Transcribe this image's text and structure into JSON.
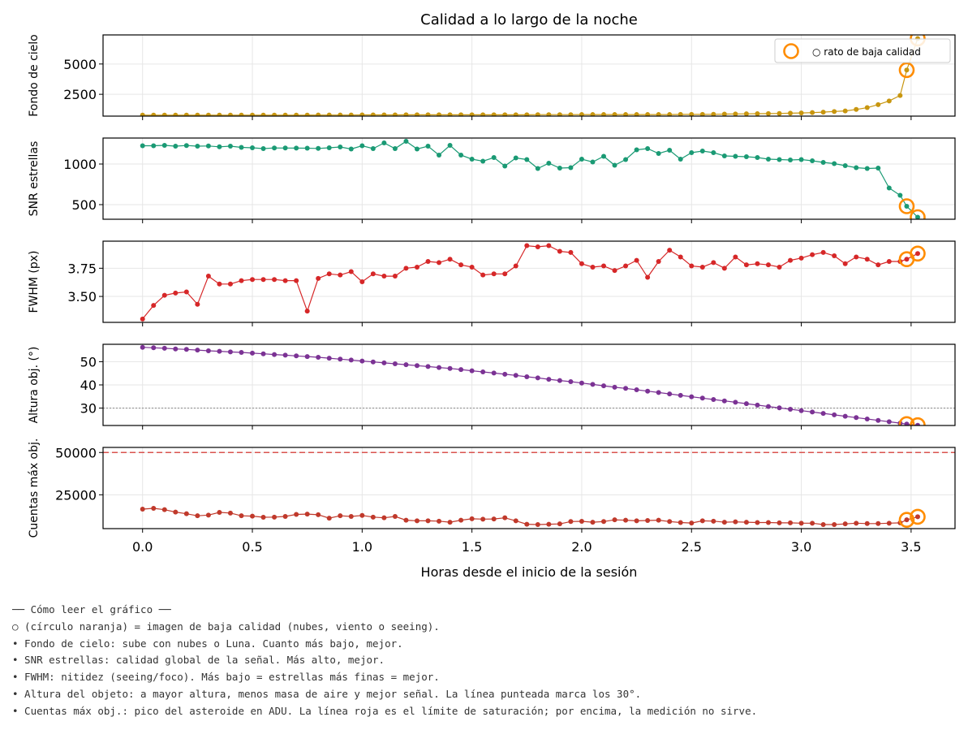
{
  "chart_data": {
    "type": "line",
    "title": "Calidad a lo largo de la noche",
    "xlabel": "Horas desde el inicio de la sesión",
    "xlim": [
      -0.18,
      3.7
    ],
    "xticks": [
      0.0,
      0.5,
      1.0,
      1.5,
      2.0,
      2.5,
      3.0,
      3.5
    ],
    "xtick_labels": [
      "0.0",
      "0.5",
      "1.0",
      "1.5",
      "2.0",
      "2.5",
      "3.0",
      "3.5"
    ],
    "x": [
      0.0,
      0.05,
      0.1,
      0.15,
      0.2,
      0.25,
      0.3,
      0.35,
      0.4,
      0.45,
      0.5,
      0.55,
      0.6,
      0.65,
      0.7,
      0.75,
      0.8,
      0.85,
      0.9,
      0.95,
      1.0,
      1.05,
      1.1,
      1.15,
      1.2,
      1.25,
      1.3,
      1.35,
      1.4,
      1.45,
      1.5,
      1.55,
      1.6,
      1.65,
      1.7,
      1.75,
      1.8,
      1.85,
      1.9,
      1.95,
      2.0,
      2.05,
      2.1,
      2.15,
      2.2,
      2.25,
      2.3,
      2.35,
      2.4,
      2.45,
      2.5,
      2.55,
      2.6,
      2.65,
      2.7,
      2.75,
      2.8,
      2.85,
      2.9,
      2.95,
      3.0,
      3.05,
      3.1,
      3.15,
      3.2,
      3.25,
      3.3,
      3.35,
      3.4,
      3.45,
      3.48,
      3.53
    ],
    "grid": true,
    "legend": {
      "label": "○ rato de baja calidad",
      "position": "top-right",
      "panel": 0
    },
    "flag_color": "#ff8c00",
    "flagged_indices": [
      70,
      71
    ],
    "panels": [
      {
        "ylabel": "Fondo de cielo",
        "color": "#c8960f",
        "ylim": [
          700,
          7400
        ],
        "yticks": [
          2500,
          5000
        ],
        "ytick_labels": [
          "2500",
          "5000"
        ],
        "values": [
          780,
          780,
          780,
          780,
          780,
          780,
          780,
          780,
          780,
          780,
          780,
          780,
          780,
          780,
          780,
          780,
          790,
          790,
          790,
          790,
          800,
          800,
          800,
          800,
          810,
          810,
          810,
          810,
          810,
          810,
          810,
          810,
          810,
          810,
          810,
          810,
          820,
          820,
          820,
          820,
          830,
          830,
          830,
          830,
          830,
          830,
          830,
          830,
          830,
          840,
          840,
          840,
          850,
          870,
          880,
          890,
          900,
          910,
          920,
          940,
          960,
          990,
          1030,
          1080,
          1130,
          1250,
          1400,
          1650,
          1950,
          2400,
          4500,
          7100
        ]
      },
      {
        "ylabel": "SNR estrellas",
        "color": "#1a9a74",
        "ylim": [
          320,
          1320
        ],
        "yticks": [
          500,
          1000
        ],
        "ytick_labels": [
          "500",
          "1000"
        ],
        "values": [
          1225,
          1225,
          1230,
          1220,
          1228,
          1220,
          1222,
          1212,
          1220,
          1205,
          1200,
          1190,
          1198,
          1197,
          1196,
          1195,
          1192,
          1200,
          1210,
          1185,
          1225,
          1190,
          1260,
          1190,
          1280,
          1185,
          1220,
          1110,
          1230,
          1110,
          1060,
          1035,
          1080,
          975,
          1075,
          1055,
          945,
          1010,
          950,
          955,
          1060,
          1025,
          1095,
          985,
          1055,
          1175,
          1190,
          1130,
          1170,
          1060,
          1140,
          1160,
          1140,
          1100,
          1095,
          1090,
          1080,
          1060,
          1055,
          1050,
          1055,
          1040,
          1020,
          1005,
          980,
          955,
          945,
          950,
          705,
          615,
          480,
          345
        ]
      },
      {
        "ylabel": "FWHM (px)",
        "color": "#d62728",
        "ylim": [
          3.27,
          3.99
        ],
        "yticks": [
          3.5,
          3.75
        ],
        "ytick_labels": [
          "3.50",
          "3.75"
        ],
        "values": [
          3.3,
          3.42,
          3.51,
          3.53,
          3.54,
          3.43,
          3.68,
          3.61,
          3.61,
          3.64,
          3.65,
          3.65,
          3.65,
          3.64,
          3.64,
          3.37,
          3.66,
          3.7,
          3.69,
          3.72,
          3.63,
          3.7,
          3.68,
          3.68,
          3.75,
          3.76,
          3.81,
          3.8,
          3.83,
          3.78,
          3.76,
          3.69,
          3.7,
          3.7,
          3.77,
          3.95,
          3.94,
          3.95,
          3.9,
          3.89,
          3.79,
          3.76,
          3.77,
          3.73,
          3.77,
          3.82,
          3.67,
          3.81,
          3.91,
          3.85,
          3.77,
          3.76,
          3.8,
          3.75,
          3.85,
          3.78,
          3.79,
          3.78,
          3.76,
          3.82,
          3.84,
          3.87,
          3.89,
          3.86,
          3.79,
          3.85,
          3.83,
          3.78,
          3.81,
          3.81,
          3.83,
          3.88
        ]
      },
      {
        "ylabel": "Altura obj. (°)",
        "color": "#7b3294",
        "ylim": [
          22.5,
          57.5
        ],
        "yticks": [
          30,
          40,
          50
        ],
        "ytick_labels": [
          "30",
          "40",
          "50"
        ],
        "refline": {
          "y": 30,
          "style": "dotted",
          "color": "#888888"
        },
        "values": [
          56.2,
          56.0,
          55.8,
          55.5,
          55.3,
          55.0,
          54.7,
          54.5,
          54.2,
          54.0,
          53.7,
          53.4,
          53.1,
          52.8,
          52.5,
          52.2,
          51.9,
          51.5,
          51.1,
          50.7,
          50.3,
          49.9,
          49.5,
          49.1,
          48.7,
          48.3,
          47.9,
          47.5,
          47.1,
          46.6,
          46.1,
          45.6,
          45.1,
          44.6,
          44.1,
          43.5,
          43.0,
          42.4,
          41.9,
          41.4,
          40.8,
          40.2,
          39.6,
          39.0,
          38.5,
          37.9,
          37.3,
          36.7,
          36.1,
          35.5,
          34.9,
          34.3,
          33.7,
          33.1,
          32.5,
          31.9,
          31.3,
          30.7,
          30.1,
          29.5,
          28.9,
          28.3,
          27.7,
          27.1,
          26.5,
          25.9,
          25.3,
          24.7,
          24.1,
          23.5,
          23.1,
          22.6
        ]
      },
      {
        "ylabel": "Cuentas máx obj.",
        "color": "#c0392b",
        "ylim": [
          5000,
          53000
        ],
        "yticks": [
          25000,
          50000
        ],
        "ytick_labels": [
          "25000",
          "50000"
        ],
        "refline": {
          "y": 50000,
          "style": "dashed",
          "color": "#d9534f"
        },
        "values": [
          16500,
          17000,
          16200,
          14800,
          13800,
          12600,
          13000,
          14600,
          14200,
          12600,
          12400,
          11700,
          11800,
          12200,
          13400,
          13600,
          13200,
          11200,
          12600,
          12200,
          12800,
          11800,
          11400,
          12200,
          10000,
          9600,
          9600,
          9400,
          8800,
          10000,
          10800,
          10600,
          10700,
          11400,
          9600,
          7600,
          7400,
          7600,
          7800,
          9200,
          9300,
          8800,
          9200,
          10200,
          10000,
          9600,
          9800,
          10000,
          9200,
          8600,
          8300,
          9600,
          9400,
          8800,
          9000,
          8800,
          8600,
          8600,
          8400,
          8400,
          8200,
          8200,
          7400,
          7400,
          7800,
          8200,
          8000,
          8000,
          8200,
          8400,
          10200,
          12000
        ]
      }
    ]
  },
  "notes": {
    "heading": "── Cómo leer el gráfico ──",
    "lines": [
      "○ (círculo naranja) = imagen de baja calidad (nubes, viento o seeing).",
      "• Fondo de cielo: sube con nubes o Luna. Cuanto más bajo, mejor.",
      "• SNR estrellas: calidad global de la señal. Más alto, mejor.",
      "• FWHM: nitidez (seeing/foco). Más bajo = estrellas más finas = mejor.",
      "• Altura del objeto: a mayor altura, menos masa de aire y mejor señal. La línea punteada marca los 30°.",
      "• Cuentas máx obj.: pico del asteroide en ADU. La línea roja es el límite de saturación; por encima, la medición no sirve."
    ]
  }
}
